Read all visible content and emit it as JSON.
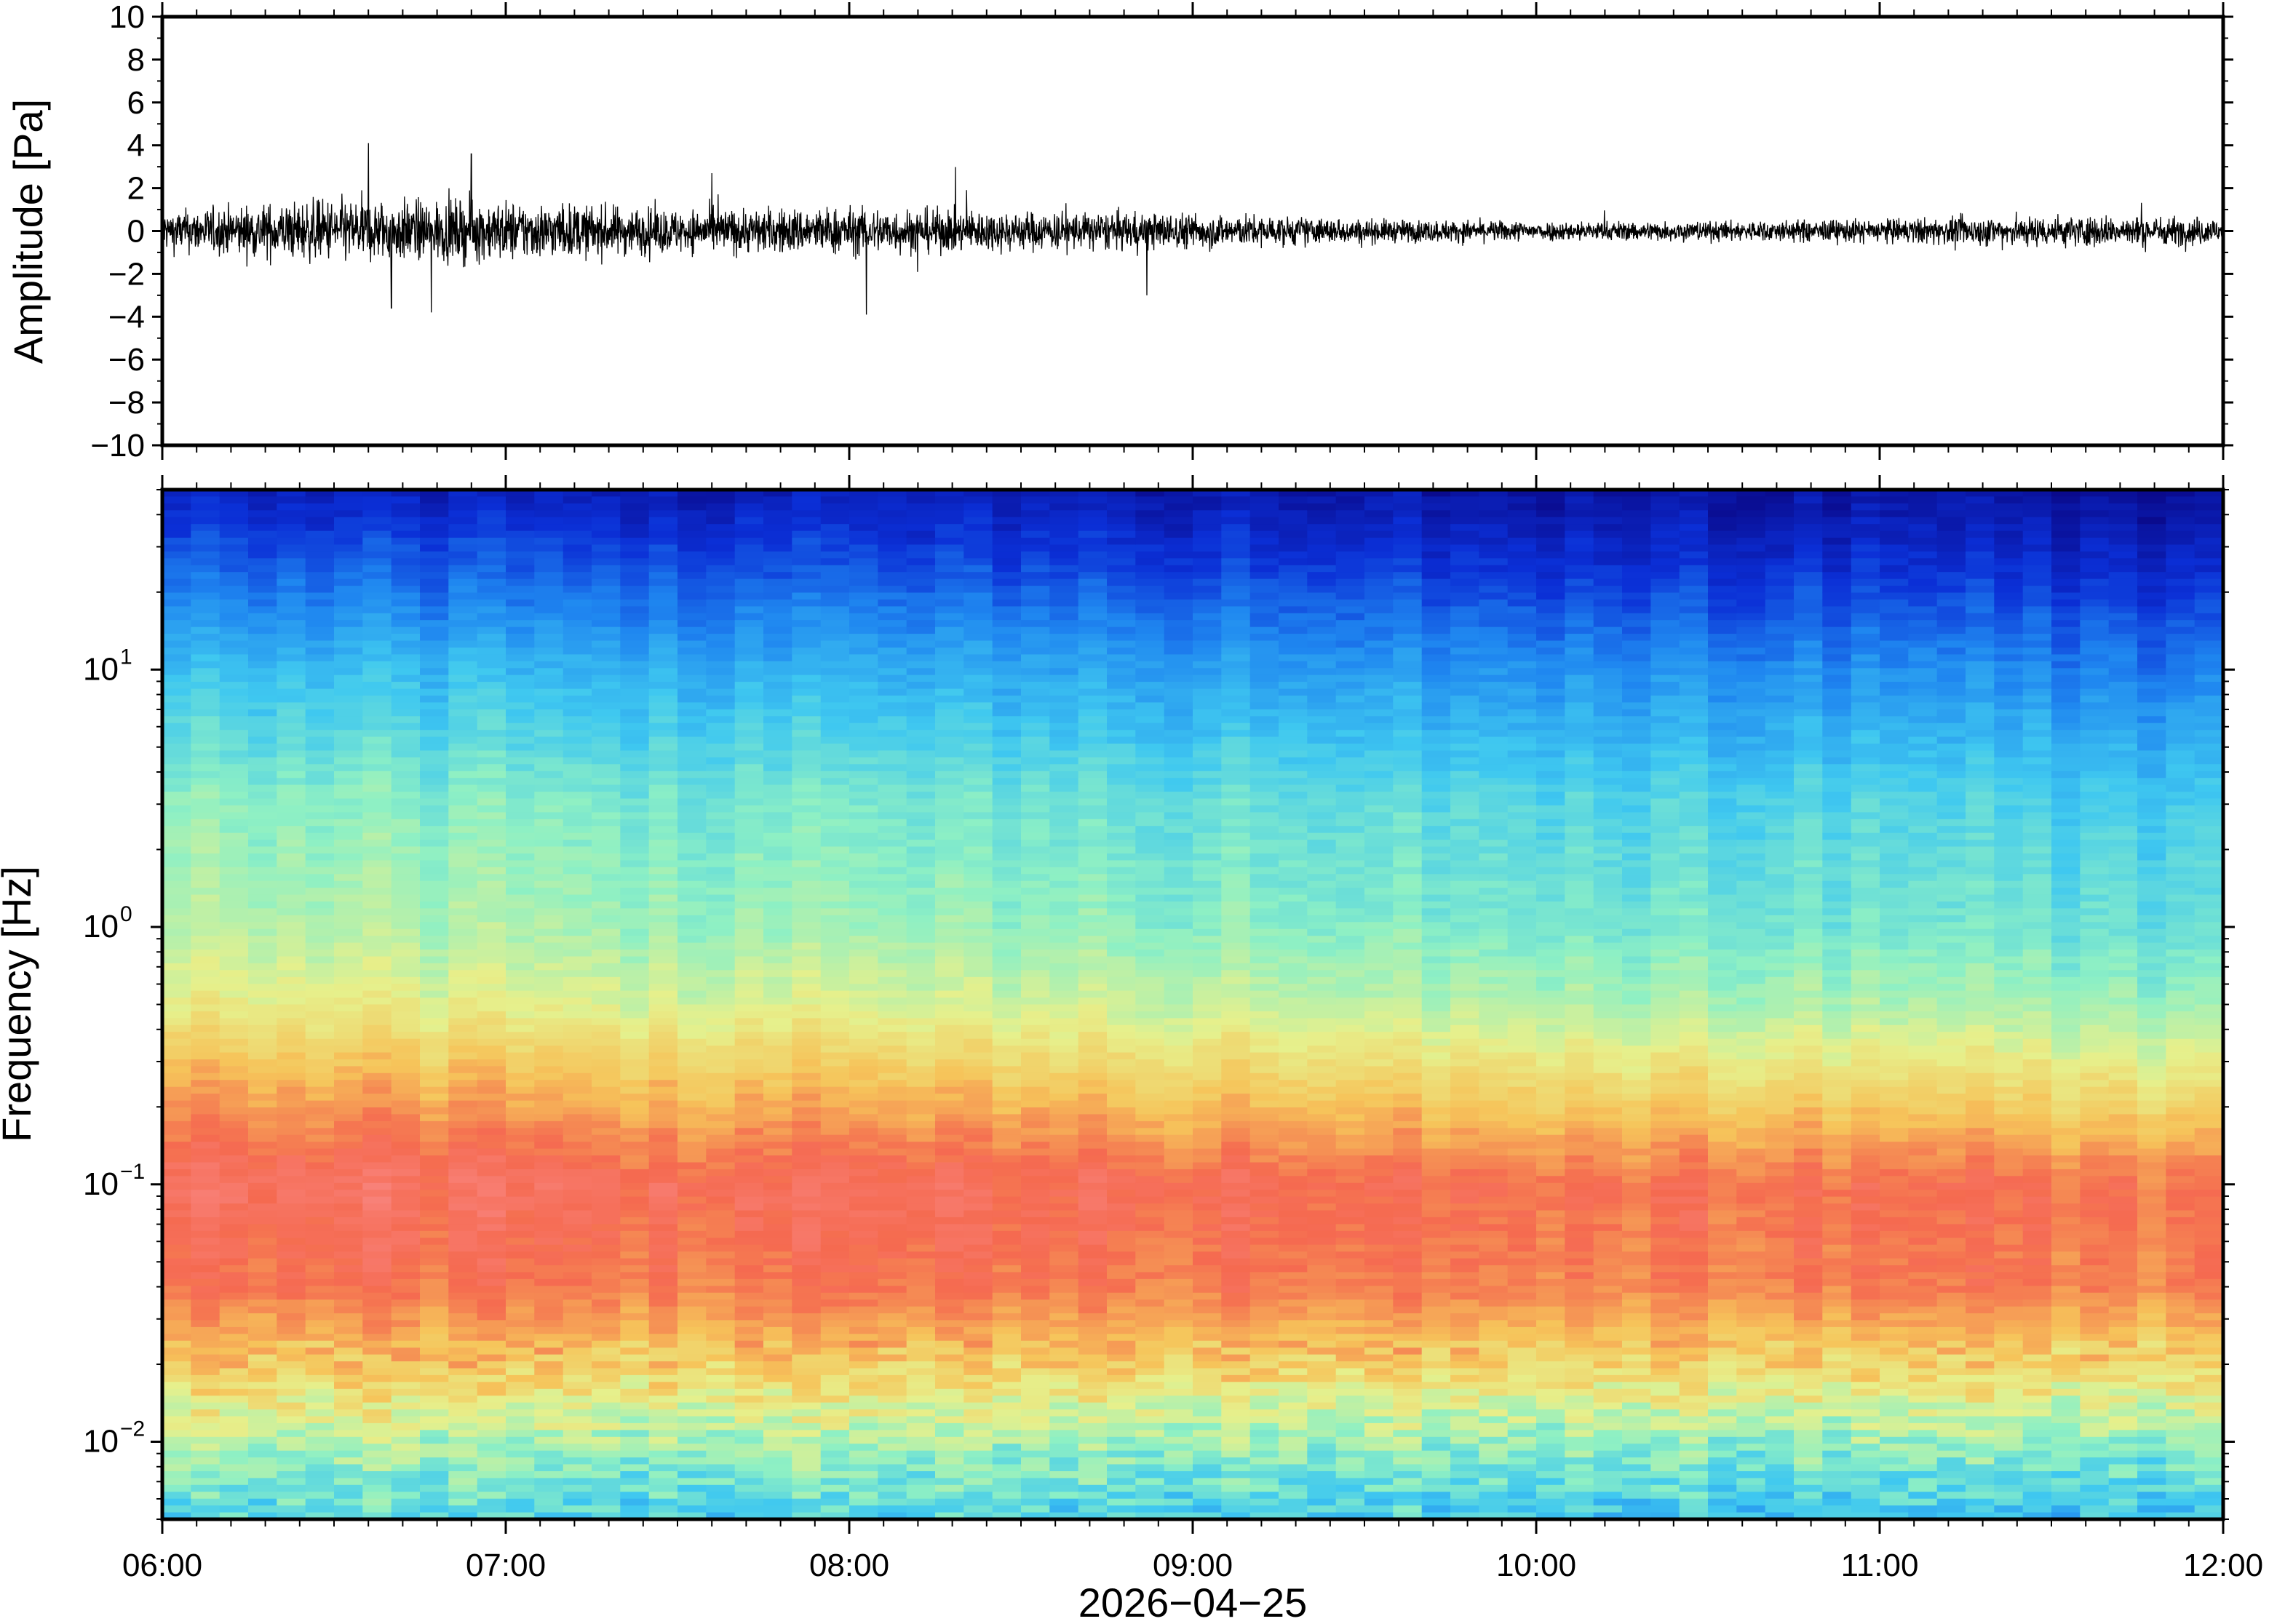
{
  "colors": {
    "frame": "#000000",
    "waveform": "#000000",
    "background": "#ffffff",
    "colormap": [
      "#0a0a8c",
      "#0b2fd6",
      "#1f87f0",
      "#3fc8f0",
      "#8ef0c4",
      "#e6f08c",
      "#f6c45a",
      "#f56a50",
      "#fa8c8c"
    ]
  },
  "chart_data": [
    {
      "type": "line",
      "name": "waveform",
      "ylabel": "Amplitude [Pa]",
      "ylim": [
        -10,
        10
      ],
      "yticks": [
        "10",
        "8",
        "6",
        "4",
        "2",
        "0",
        "−2",
        "−4",
        "−6",
        "−8",
        "−10"
      ],
      "xlim": [
        "06:00",
        "12:00"
      ],
      "envelope": [
        {
          "t": "06:00",
          "a": 1.0
        },
        {
          "t": "06:30",
          "a": 1.6
        },
        {
          "t": "07:00",
          "a": 1.5
        },
        {
          "t": "07:30",
          "a": 1.1
        },
        {
          "t": "08:00",
          "a": 1.2
        },
        {
          "t": "08:30",
          "a": 1.0
        },
        {
          "t": "09:00",
          "a": 0.9
        },
        {
          "t": "09:30",
          "a": 0.6
        },
        {
          "t": "10:00",
          "a": 0.5
        },
        {
          "t": "10:30",
          "a": 0.5
        },
        {
          "t": "11:00",
          "a": 0.6
        },
        {
          "t": "11:30",
          "a": 0.8
        },
        {
          "t": "12:00",
          "a": 0.7
        }
      ],
      "peaks": [
        {
          "t": "06:36",
          "v": 4.1
        },
        {
          "t": "06:54",
          "v": 3.6
        },
        {
          "t": "07:36",
          "v": 2.7
        },
        {
          "t": "08:03",
          "v": 2.6
        },
        {
          "t": "06:40",
          "v": -3.6
        },
        {
          "t": "06:47",
          "v": -3.8
        },
        {
          "t": "08:03",
          "v": -3.9
        },
        {
          "t": "08:52",
          "v": -3.0
        }
      ]
    },
    {
      "type": "heatmap",
      "name": "spectrogram",
      "ylabel": "Frequency [Hz]",
      "yscale": "log",
      "ylim": [
        0.005,
        50
      ],
      "yticks": [
        {
          "base": "10",
          "exp": "1"
        },
        {
          "base": "10",
          "exp": "0"
        },
        {
          "base": "10",
          "exp": "−1"
        },
        {
          "base": "10",
          "exp": "−2"
        }
      ],
      "xlabel": "2026−04−25",
      "xticks": [
        "06:00",
        "07:00",
        "08:00",
        "09:00",
        "10:00",
        "11:00",
        "12:00"
      ],
      "xlim": [
        "06:00",
        "12:00"
      ],
      "profile": {
        "description_levels": "relative power from 0 (dark blue) to 1 (pink-red)",
        "log10_freq": [
          -2.3,
          -2.0,
          -1.7,
          -1.4,
          -1.0,
          -0.6,
          -0.3,
          0.0,
          0.5,
          1.0,
          1.4,
          1.7
        ],
        "early": [
          0.42,
          0.55,
          0.74,
          0.86,
          0.92,
          0.78,
          0.64,
          0.56,
          0.5,
          0.36,
          0.2,
          0.08
        ],
        "late": [
          0.36,
          0.5,
          0.7,
          0.84,
          0.86,
          0.66,
          0.52,
          0.44,
          0.38,
          0.24,
          0.1,
          0.02
        ]
      }
    }
  ]
}
